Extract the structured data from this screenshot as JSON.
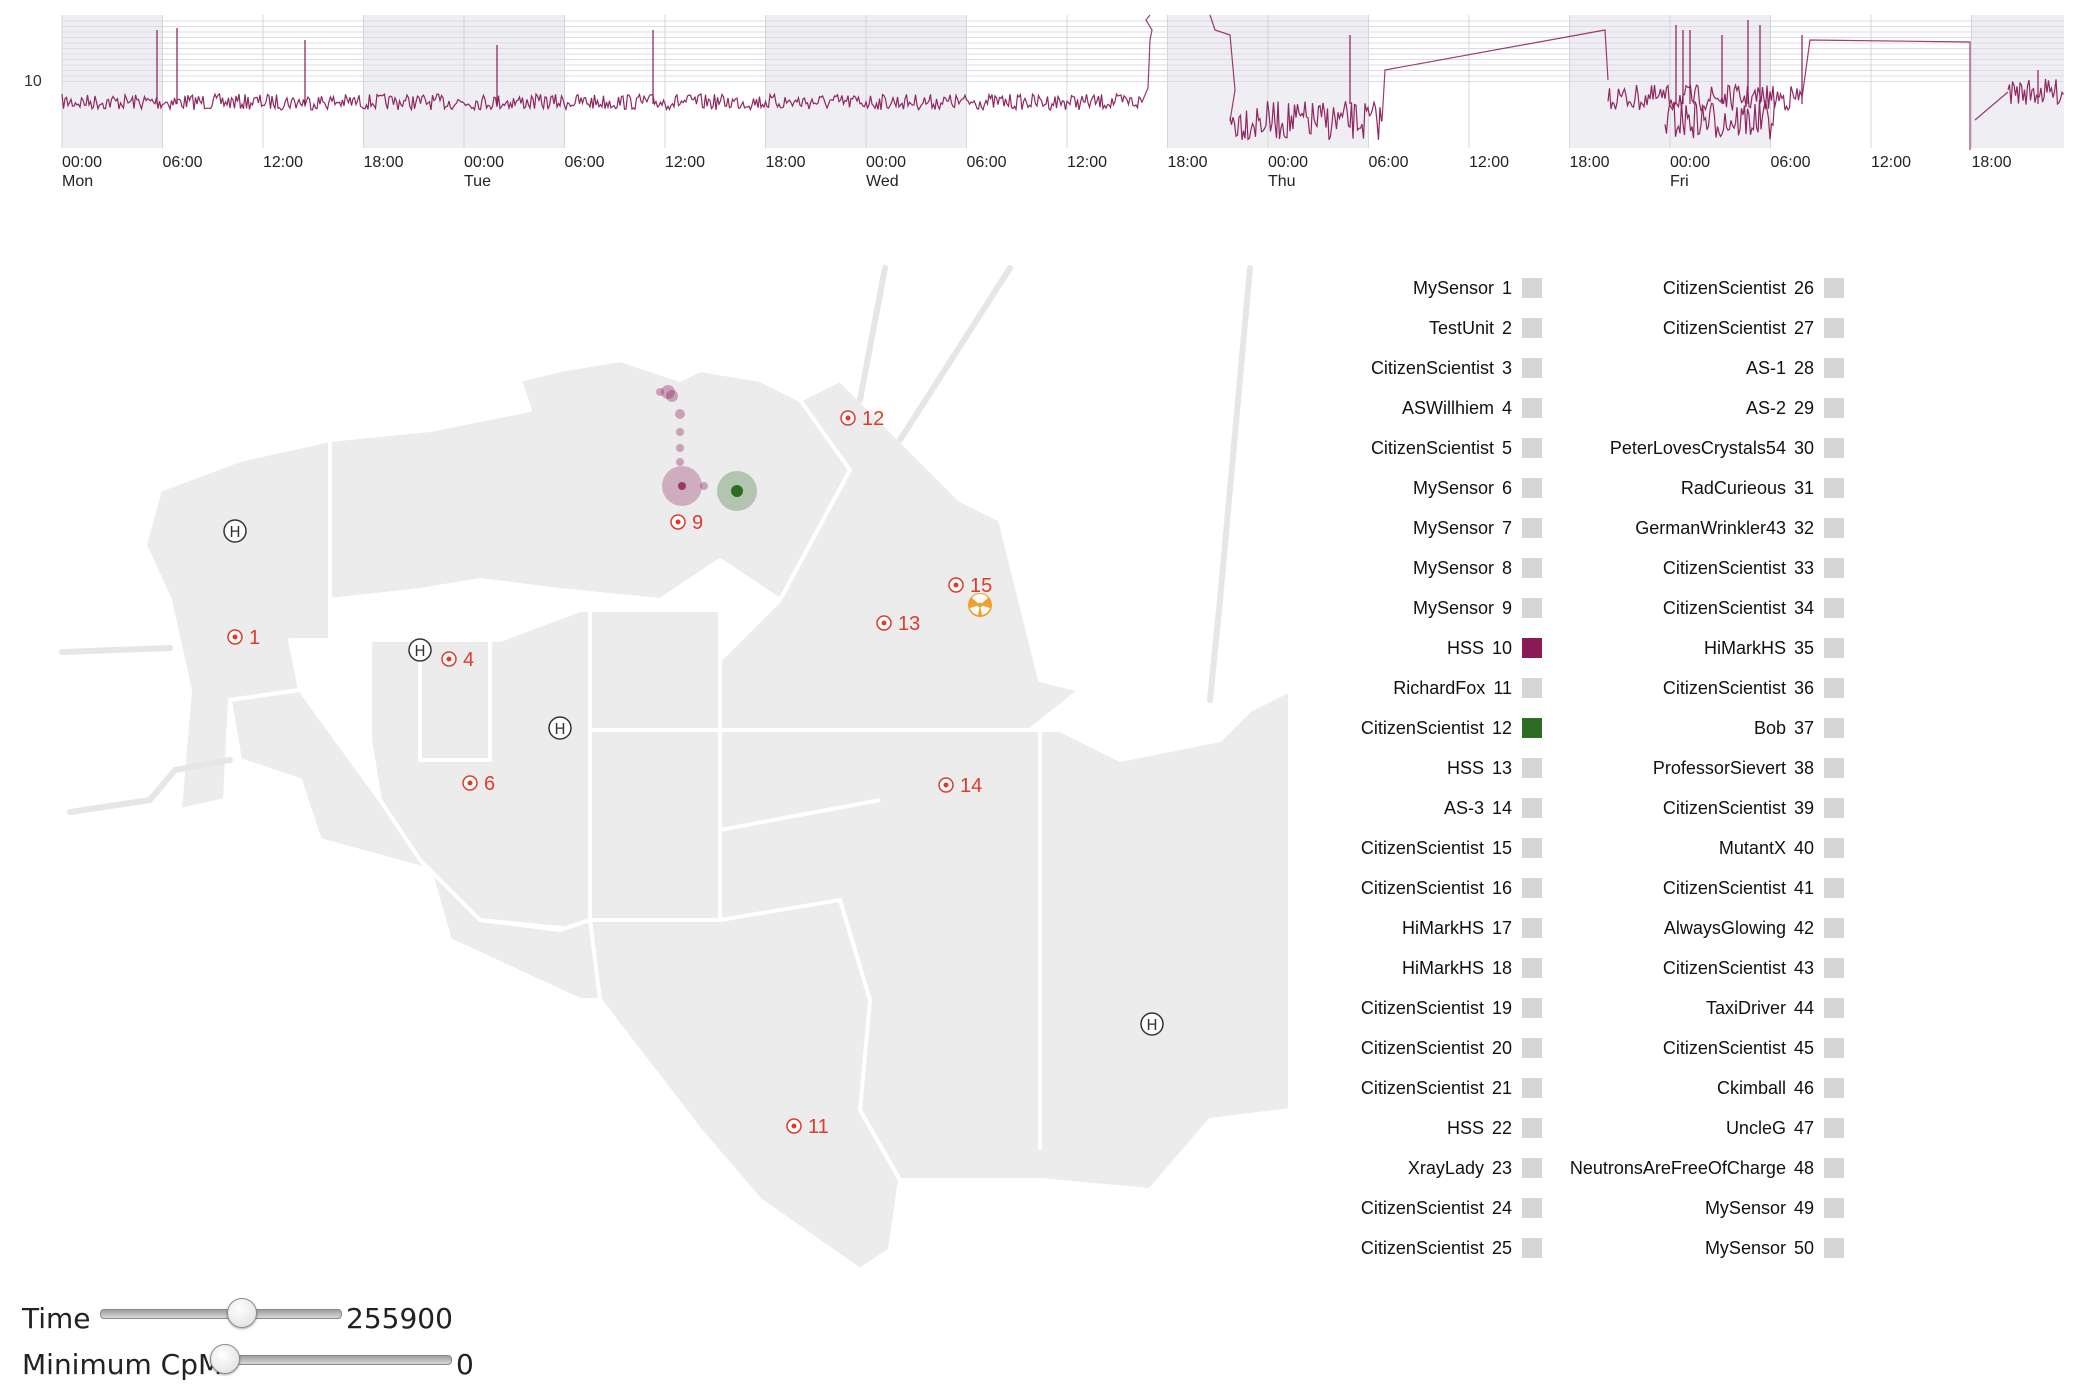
{
  "timeline": {
    "y_tick_label": "10",
    "time_ticks": [
      "00:00",
      "06:00",
      "12:00",
      "18:00",
      "00:00",
      "06:00",
      "12:00",
      "18:00",
      "00:00",
      "06:00",
      "12:00",
      "18:00",
      "00:00",
      "06:00",
      "12:00",
      "18:00",
      "00:00",
      "06:00",
      "12:00",
      "18:00"
    ],
    "day_labels": [
      "Mon",
      "Tue",
      "Wed",
      "Thu",
      "Fri"
    ],
    "series_color": "#8b1a57"
  },
  "map": {
    "markers": [
      {
        "label": "1",
        "icon": "sensor-icon"
      },
      {
        "label": "4",
        "icon": "sensor-icon"
      },
      {
        "label": "6",
        "icon": "sensor-icon"
      },
      {
        "label": "9",
        "icon": "sensor-icon"
      },
      {
        "label": "11",
        "icon": "sensor-icon"
      },
      {
        "label": "12",
        "icon": "sensor-icon"
      },
      {
        "label": "13",
        "icon": "sensor-icon"
      },
      {
        "label": "14",
        "icon": "sensor-icon"
      },
      {
        "label": "15",
        "icon": "sensor-icon"
      }
    ],
    "hospital_icon": "hospital-icon",
    "radiation_icon": "radiation-icon",
    "marker_color": "#e03a2a"
  },
  "legend": {
    "items": [
      {
        "name": "MySensor",
        "id": "1",
        "color": "#d6d6d6"
      },
      {
        "name": "TestUnit",
        "id": "2",
        "color": "#d6d6d6"
      },
      {
        "name": "CitizenScientist",
        "id": "3",
        "color": "#d6d6d6"
      },
      {
        "name": "ASWillhiem",
        "id": "4",
        "color": "#d6d6d6"
      },
      {
        "name": "CitizenScientist",
        "id": "5",
        "color": "#d6d6d6"
      },
      {
        "name": "MySensor",
        "id": "6",
        "color": "#d6d6d6"
      },
      {
        "name": "MySensor",
        "id": "7",
        "color": "#d6d6d6"
      },
      {
        "name": "MySensor",
        "id": "8",
        "color": "#d6d6d6"
      },
      {
        "name": "MySensor",
        "id": "9",
        "color": "#d6d6d6"
      },
      {
        "name": "HSS",
        "id": "10",
        "color": "#8b1a57"
      },
      {
        "name": "RichardFox",
        "id": "11",
        "color": "#d6d6d6"
      },
      {
        "name": "CitizenScientist",
        "id": "12",
        "color": "#2e6b24"
      },
      {
        "name": "HSS",
        "id": "13",
        "color": "#d6d6d6"
      },
      {
        "name": "AS-3",
        "id": "14",
        "color": "#d6d6d6"
      },
      {
        "name": "CitizenScientist",
        "id": "15",
        "color": "#d6d6d6"
      },
      {
        "name": "CitizenScientist",
        "id": "16",
        "color": "#d6d6d6"
      },
      {
        "name": "HiMarkHS",
        "id": "17",
        "color": "#d6d6d6"
      },
      {
        "name": "HiMarkHS",
        "id": "18",
        "color": "#d6d6d6"
      },
      {
        "name": "CitizenScientist",
        "id": "19",
        "color": "#d6d6d6"
      },
      {
        "name": "CitizenScientist",
        "id": "20",
        "color": "#d6d6d6"
      },
      {
        "name": "CitizenScientist",
        "id": "21",
        "color": "#d6d6d6"
      },
      {
        "name": "HSS",
        "id": "22",
        "color": "#d6d6d6"
      },
      {
        "name": "XrayLady",
        "id": "23",
        "color": "#d6d6d6"
      },
      {
        "name": "CitizenScientist",
        "id": "24",
        "color": "#d6d6d6"
      },
      {
        "name": "CitizenScientist",
        "id": "25",
        "color": "#d6d6d6"
      },
      {
        "name": "CitizenScientist",
        "id": "26",
        "color": "#d6d6d6"
      },
      {
        "name": "CitizenScientist",
        "id": "27",
        "color": "#d6d6d6"
      },
      {
        "name": "AS-1",
        "id": "28",
        "color": "#d6d6d6"
      },
      {
        "name": "AS-2",
        "id": "29",
        "color": "#d6d6d6"
      },
      {
        "name": "PeterLovesCrystals54",
        "id": "30",
        "color": "#d6d6d6"
      },
      {
        "name": "RadCurieous",
        "id": "31",
        "color": "#d6d6d6"
      },
      {
        "name": "GermanWrinkler43",
        "id": "32",
        "color": "#d6d6d6"
      },
      {
        "name": "CitizenScientist",
        "id": "33",
        "color": "#d6d6d6"
      },
      {
        "name": "CitizenScientist",
        "id": "34",
        "color": "#d6d6d6"
      },
      {
        "name": "HiMarkHS",
        "id": "35",
        "color": "#d6d6d6"
      },
      {
        "name": "CitizenScientist",
        "id": "36",
        "color": "#d6d6d6"
      },
      {
        "name": "Bob",
        "id": "37",
        "color": "#d6d6d6"
      },
      {
        "name": "ProfessorSievert",
        "id": "38",
        "color": "#d6d6d6"
      },
      {
        "name": "CitizenScientist",
        "id": "39",
        "color": "#d6d6d6"
      },
      {
        "name": "MutantX",
        "id": "40",
        "color": "#d6d6d6"
      },
      {
        "name": "CitizenScientist",
        "id": "41",
        "color": "#d6d6d6"
      },
      {
        "name": "AlwaysGlowing",
        "id": "42",
        "color": "#d6d6d6"
      },
      {
        "name": "CitizenScientist",
        "id": "43",
        "color": "#d6d6d6"
      },
      {
        "name": "TaxiDriver",
        "id": "44",
        "color": "#d6d6d6"
      },
      {
        "name": "CitizenScientist",
        "id": "45",
        "color": "#d6d6d6"
      },
      {
        "name": "Ckimball",
        "id": "46",
        "color": "#d6d6d6"
      },
      {
        "name": "UncleG",
        "id": "47",
        "color": "#d6d6d6"
      },
      {
        "name": "NeutronsAreFreeOfCharge",
        "id": "48",
        "color": "#d6d6d6"
      },
      {
        "name": "MySensor",
        "id": "49",
        "color": "#d6d6d6"
      },
      {
        "name": "MySensor",
        "id": "50",
        "color": "#d6d6d6"
      }
    ]
  },
  "controls": {
    "time_label": "Time",
    "time_value": "255900",
    "time_fraction": 0.6,
    "min_cpm_label": "Minimum CpM",
    "min_cpm_value": "0",
    "min_cpm_fraction": 0.0
  }
}
